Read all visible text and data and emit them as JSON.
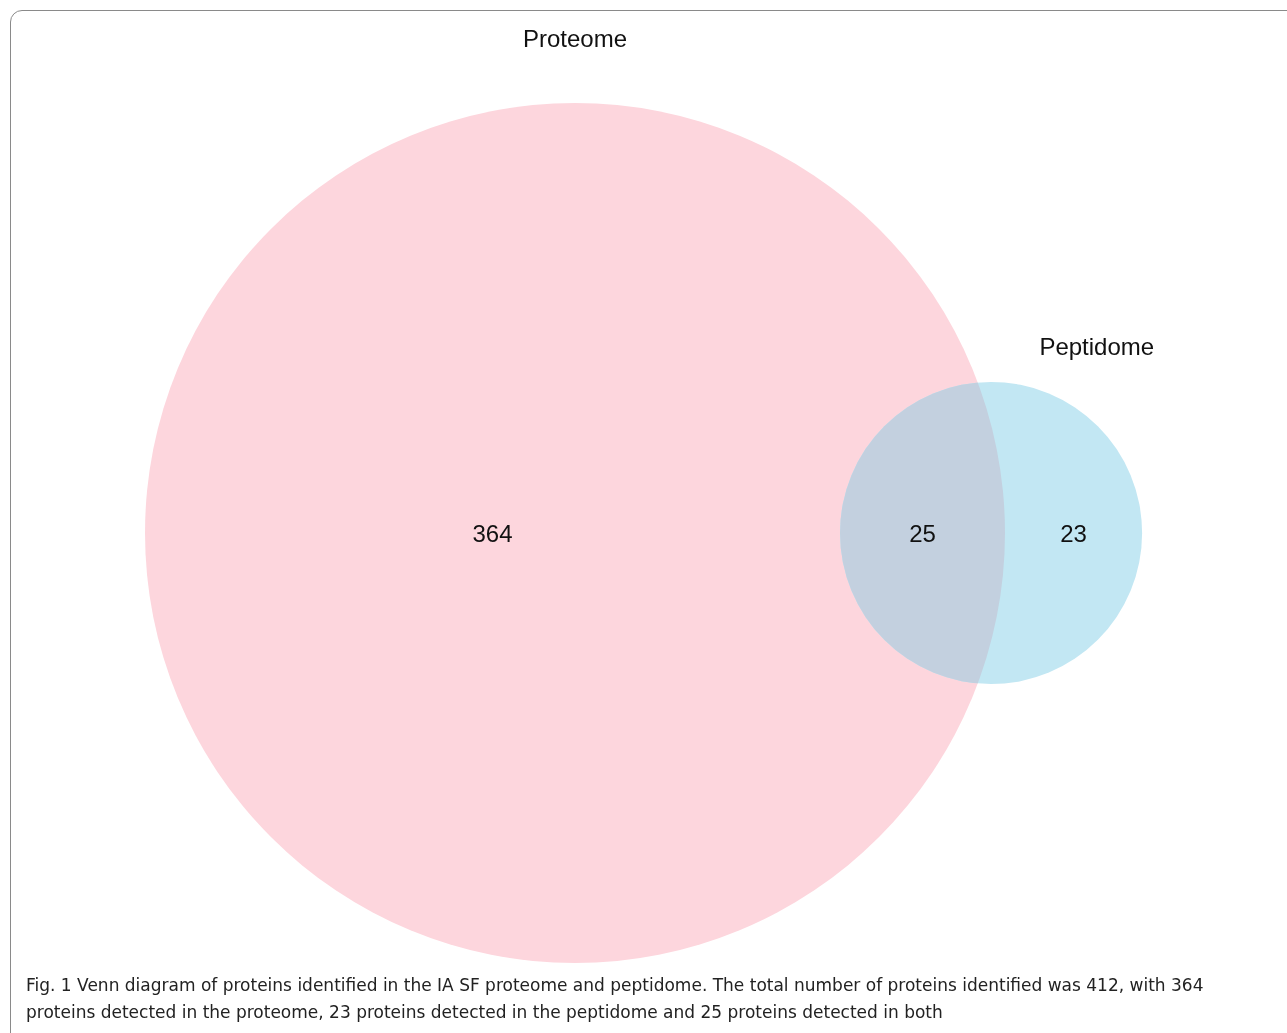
{
  "chart_data": {
    "type": "other",
    "categories": [
      null,
      null,
      null
    ],
    "values": [
      364,
      25,
      23
    ],
    "colors": [
      "#fdd6dd",
      "#c3d0df",
      "#c2e7f3"
    ],
    "data_labels": true,
    "annotations": [
      "Proteome",
      "Peptidome",
      "Fig. 1  Venn diagram of proteins identified in the IA SF proteome and peptidome. The total number of proteins identified was 412, with 364 proteins detected in the proteome, 23 proteins detected in the peptidome and 25 proteins detected in both"
    ]
  }
}
